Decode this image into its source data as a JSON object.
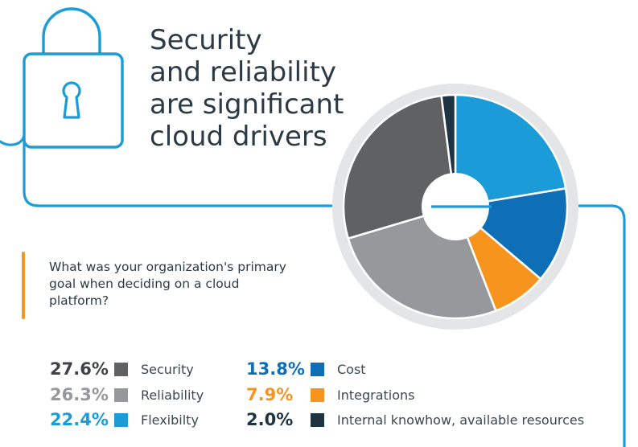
{
  "headline": [
    "Security",
    "and reliability",
    "are significant",
    "cloud drivers"
  ],
  "question": "What was your organization's primary goal when deciding on a cloud platform?",
  "icons": {
    "padlock": "lock-icon"
  },
  "colors": {
    "line": "#1b9bd7",
    "accent_bar": "#f7941e",
    "pie_ring": "#e4e5e7",
    "heading": "#2b3a44"
  },
  "chart_data": {
    "type": "pie",
    "style": "donut",
    "legend_placement": "bottom",
    "slices": [
      {
        "label": "Flexibilty",
        "value": 22.4,
        "display": "22.4%",
        "color": "#1b9bd7",
        "pct_color": "#1b9bd7"
      },
      {
        "label": "Cost",
        "value": 13.8,
        "display": "13.8%",
        "color": "#0f6fb6",
        "pct_color": "#0f6fb6"
      },
      {
        "label": "Integrations",
        "value": 7.9,
        "display": "7.9%",
        "color": "#f7941e",
        "pct_color": "#f7941e"
      },
      {
        "label": "Reliability",
        "value": 26.3,
        "display": "26.3%",
        "color": "#97989b",
        "pct_color": "#97989b"
      },
      {
        "label": "Security",
        "value": 27.6,
        "display": "27.6%",
        "color": "#606163",
        "pct_color": "#404245"
      },
      {
        "label": "Internal knowhow, available resources",
        "value": 2.0,
        "display": "2.0%",
        "color": "#1e3443",
        "pct_color": "#1e3443"
      }
    ]
  }
}
